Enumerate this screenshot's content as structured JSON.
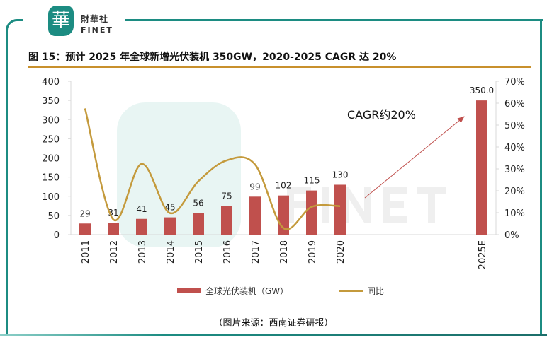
{
  "brand": {
    "name_cn": "財華社",
    "name_en": "FINET",
    "logo_char": "華",
    "watermark_cn": "財華社",
    "watermark_en": "FINET"
  },
  "title": "图 15：预计 2025 年全球新增光伏装机 350GW，2020-2025 CAGR 达 20%",
  "source": "（图片来源：西南证券研报）",
  "colors": {
    "frame": "#1c8c82",
    "bar": "#c0504d",
    "line": "#c49a3c",
    "title_rule": "#c8902c"
  },
  "chart_data": {
    "type": "bar+line",
    "categories": [
      "2011",
      "2012",
      "2013",
      "2014",
      "2015",
      "2016",
      "2017",
      "2018",
      "2019",
      "2020",
      "2025E"
    ],
    "series": [
      {
        "name": "全球光伏装机（GW）",
        "type": "bar",
        "axis": "left",
        "values": [
          29,
          31,
          41,
          45,
          56,
          75,
          99,
          102,
          115,
          130,
          350
        ],
        "labels": [
          "29",
          "31",
          "41",
          "45",
          "56",
          "75",
          "99",
          "102",
          "115",
          "130",
          "350.0"
        ]
      },
      {
        "name": "同比",
        "type": "line",
        "axis": "right",
        "smooth": true,
        "values": [
          0.576,
          0.069,
          0.323,
          0.098,
          0.244,
          0.339,
          0.32,
          0.03,
          0.127,
          0.13,
          null
        ]
      }
    ],
    "y_left": {
      "range": [
        0,
        400
      ],
      "ticks": [
        "0",
        "50",
        "100",
        "150",
        "200",
        "250",
        "300",
        "350",
        "400"
      ]
    },
    "y_right": {
      "range": [
        0,
        0.7
      ],
      "ticks": [
        "0%",
        "10%",
        "20%",
        "30%",
        "40%",
        "50%",
        "60%",
        "70%"
      ]
    },
    "annotation": {
      "text": "CAGR约20%",
      "arrow_from": "2020",
      "arrow_to": "2025E"
    },
    "legend": {
      "placement": "bottom",
      "items": [
        "全球光伏装机（GW）",
        "同比"
      ]
    },
    "grid": false
  }
}
